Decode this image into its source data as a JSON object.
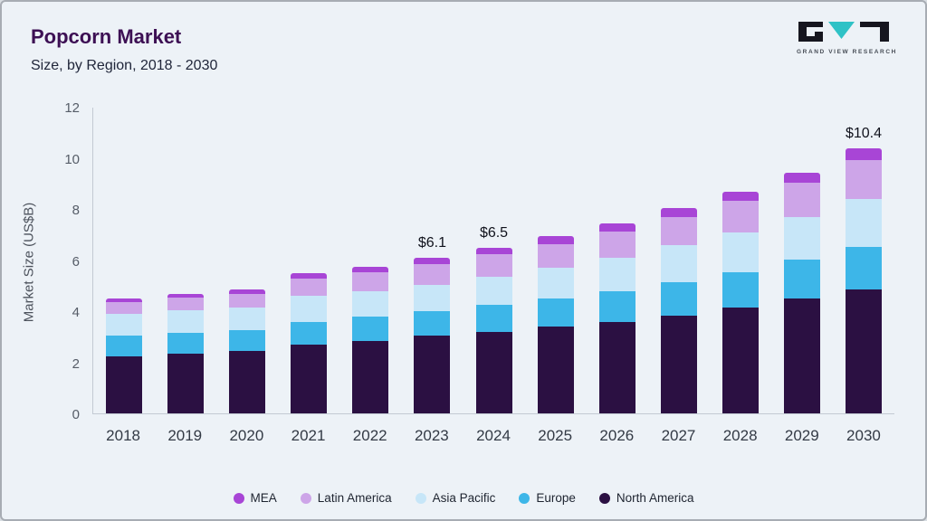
{
  "header": {
    "title": "Popcorn Market",
    "subtitle": "Size, by Region, 2018 - 2030",
    "logo_text": "GRAND VIEW RESEARCH"
  },
  "chart_data": {
    "type": "bar",
    "stacked": true,
    "title": "Popcorn Market Size, by Region, 2018 - 2030",
    "xlabel": "",
    "ylabel": "Market Size (US$B)",
    "ylim": [
      0,
      12
    ],
    "yticks": [
      0,
      2,
      4,
      6,
      8,
      10,
      12
    ],
    "grid": false,
    "legend_position": "bottom",
    "categories": [
      "2018",
      "2019",
      "2020",
      "2021",
      "2022",
      "2023",
      "2024",
      "2025",
      "2026",
      "2027",
      "2028",
      "2029",
      "2030"
    ],
    "series": [
      {
        "name": "North America",
        "color": "#2b1042",
        "values": [
          2.25,
          2.35,
          2.45,
          2.7,
          2.85,
          3.05,
          3.2,
          3.4,
          3.6,
          3.85,
          4.15,
          4.5,
          4.85
        ]
      },
      {
        "name": "Europe",
        "color": "#3db6e8",
        "values": [
          0.8,
          0.8,
          0.8,
          0.9,
          0.95,
          0.95,
          1.05,
          1.1,
          1.2,
          1.3,
          1.4,
          1.55,
          1.7
        ]
      },
      {
        "name": "Asia Pacific",
        "color": "#c7e6f8",
        "values": [
          0.85,
          0.9,
          0.9,
          1.0,
          1.0,
          1.05,
          1.1,
          1.2,
          1.3,
          1.45,
          1.55,
          1.65,
          1.85
        ]
      },
      {
        "name": "Latin America",
        "color": "#cda5e8",
        "values": [
          0.45,
          0.5,
          0.55,
          0.7,
          0.75,
          0.8,
          0.9,
          0.95,
          1.05,
          1.1,
          1.25,
          1.35,
          1.55
        ]
      },
      {
        "name": "MEA",
        "color": "#a845d6",
        "values": [
          0.15,
          0.15,
          0.15,
          0.2,
          0.2,
          0.25,
          0.25,
          0.3,
          0.3,
          0.35,
          0.35,
          0.4,
          0.45
        ]
      }
    ],
    "totals": [
      4.5,
      4.7,
      4.85,
      5.5,
      5.75,
      6.1,
      6.5,
      6.95,
      7.45,
      8.05,
      8.7,
      9.45,
      10.4
    ],
    "annotations": {
      "2023": "$6.1",
      "2024": "$6.5",
      "2030": "$10.4"
    },
    "legend": [
      "MEA",
      "Latin America",
      "Asia Pacific",
      "Europe",
      "North America"
    ]
  }
}
